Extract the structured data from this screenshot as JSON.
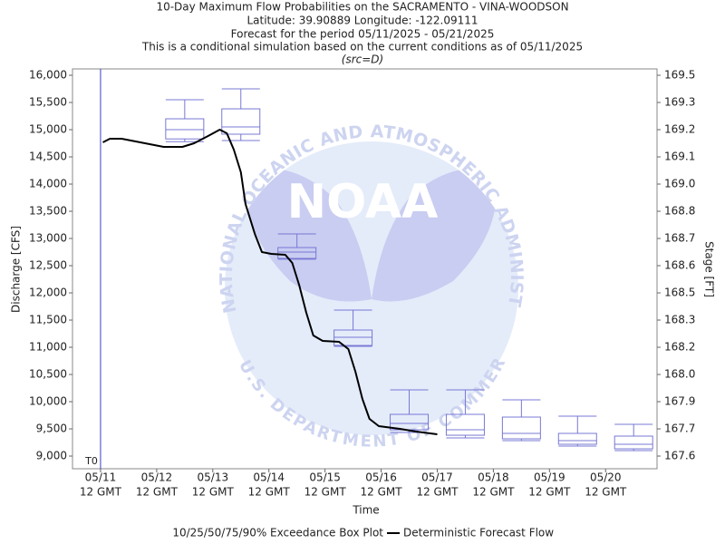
{
  "chart_data": {
    "type": "box",
    "title": "10-Day Maximum Flow Probabilities on the SACRAMENTO - VINA-WOODSON",
    "subtitle_lines": [
      "Latitude: 39.90889 Longitude: -122.09111",
      "Forecast for the period 05/11/2025 - 05/21/2025",
      "This is a conditional simulation based on the current conditions as of 05/11/2025"
    ],
    "source": "(src=D)",
    "y_label": "Discharge [CFS]",
    "y2_label": "Stage [FT]",
    "x_label": "Time",
    "watermark": {
      "logo": "NOAA",
      "outer": "NATIONAL OCEANIC AND ATMOSPHERIC ADMINISTRATION",
      "inner": "U.S. DEPARTMENT OF COMMERCE"
    },
    "annotations": [
      {
        "text": "T0",
        "x": "2025-05-11T12:00",
        "color": "#3a3ac8"
      }
    ],
    "xlim": [
      "2025-05-11T00:00",
      "2025-05-21T10:00"
    ],
    "xticks": [
      {
        "value": "2025-05-11T12:00",
        "label": "05/11",
        "sublabel": "12 GMT"
      },
      {
        "value": "2025-05-12T12:00",
        "label": "05/12",
        "sublabel": "12 GMT"
      },
      {
        "value": "2025-05-13T12:00",
        "label": "05/13",
        "sublabel": "12 GMT"
      },
      {
        "value": "2025-05-14T12:00",
        "label": "05/14",
        "sublabel": "12 GMT"
      },
      {
        "value": "2025-05-15T12:00",
        "label": "05/15",
        "sublabel": "12 GMT"
      },
      {
        "value": "2025-05-16T12:00",
        "label": "05/16",
        "sublabel": "12 GMT"
      },
      {
        "value": "2025-05-17T12:00",
        "label": "05/17",
        "sublabel": "12 GMT"
      },
      {
        "value": "2025-05-18T12:00",
        "label": "05/18",
        "sublabel": "12 GMT"
      },
      {
        "value": "2025-05-19T12:00",
        "label": "05/19",
        "sublabel": "12 GMT"
      },
      {
        "value": "2025-05-20T12:00",
        "label": "05/20",
        "sublabel": "12 GMT"
      }
    ],
    "ylim": [
      8767,
      16117
    ],
    "yticks": [
      {
        "value": 16000,
        "label": "16,000"
      },
      {
        "value": 15500,
        "label": "15,500"
      },
      {
        "value": 15000,
        "label": "15,000"
      },
      {
        "value": 14500,
        "label": "14,500"
      },
      {
        "value": 14000,
        "label": "14,000"
      },
      {
        "value": 13500,
        "label": "13,500"
      },
      {
        "value": 13000,
        "label": "13,000"
      },
      {
        "value": 12500,
        "label": "12,500"
      },
      {
        "value": 12000,
        "label": "12,000"
      },
      {
        "value": 11500,
        "label": "11,500"
      },
      {
        "value": 11000,
        "label": "11,000"
      },
      {
        "value": 10500,
        "label": "10,500"
      },
      {
        "value": 10000,
        "label": "10,000"
      },
      {
        "value": 9500,
        "label": "9,500"
      },
      {
        "value": 9000,
        "label": "9,000"
      }
    ],
    "y2_scale": "rating",
    "y2ticks": [
      169.5,
      169.3,
      169.2,
      169.1,
      {
        "value": 169,
        "label": "169.0"
      },
      168.8,
      168.7,
      168.6,
      168.5,
      168.3,
      168.2,
      {
        "value": 168,
        "label": "168.0"
      },
      167.9,
      167.7,
      167.6
    ],
    "series": [
      {
        "name": "10/25/50/75/90% Exceedance Box Plot",
        "type": "box",
        "color": "#7878d4",
        "x": [
          "2025-05-13T00:00",
          "2025-05-14T00:00",
          "2025-05-15T00:00",
          "2025-05-16T00:00",
          "2025-05-17T00:00",
          "2025-05-18T00:00",
          "2025-05-19T00:00",
          "2025-05-20T00:00",
          "2025-05-21T00:00"
        ],
        "p10": [
          14780,
          14800,
          12620,
          11017,
          9433,
          9333,
          9283,
          9183,
          9100
        ],
        "p25": [
          14830,
          14917,
          12633,
          11033,
          9483,
          9383,
          9317,
          9217,
          9133
        ],
        "p50": [
          15000,
          15050,
          12750,
          11183,
          9600,
          9483,
          9417,
          9283,
          9217
        ],
        "p75": [
          15200,
          15383,
          12833,
          11317,
          9767,
          9767,
          9717,
          9417,
          9367
        ],
        "p90": [
          15550,
          15750,
          13083,
          11683,
          10217,
          10217,
          10033,
          9733,
          9583
        ]
      },
      {
        "name": "Deterministic Forecast Flow",
        "type": "line",
        "color": "#000000",
        "x": [
          "2025-05-11T13:00",
          "2025-05-11T16:00",
          "2025-05-11T21:00",
          "2025-05-12T07:00",
          "2025-05-12T15:00",
          "2025-05-12T23:00",
          "2025-05-13T04:00",
          "2025-05-13T10:00",
          "2025-05-13T15:00",
          "2025-05-13T18:00",
          "2025-05-13T21:00",
          "2025-05-14T00:00",
          "2025-05-14T02:00",
          "2025-05-14T06:00",
          "2025-05-14T09:00",
          "2025-05-14T13:00",
          "2025-05-14T19:00",
          "2025-05-14T22:00",
          "2025-05-15T01:00",
          "2025-05-15T04:00",
          "2025-05-15T07:00",
          "2025-05-15T11:00",
          "2025-05-15T18:00",
          "2025-05-15T22:00",
          "2025-05-16T01:00",
          "2025-05-16T04:00",
          "2025-05-16T07:00",
          "2025-05-16T11:00",
          "2025-05-16T20:00",
          "2025-05-17T03:00",
          "2025-05-17T12:00"
        ],
        "values": [
          14767,
          14833,
          14833,
          14750,
          14683,
          14683,
          14750,
          14883,
          15000,
          14933,
          14633,
          14217,
          13633,
          13083,
          12750,
          12717,
          12700,
          12550,
          12133,
          11633,
          11217,
          11117,
          11100,
          10967,
          10550,
          10050,
          9683,
          9550,
          9500,
          9450,
          9400
        ]
      }
    ]
  }
}
